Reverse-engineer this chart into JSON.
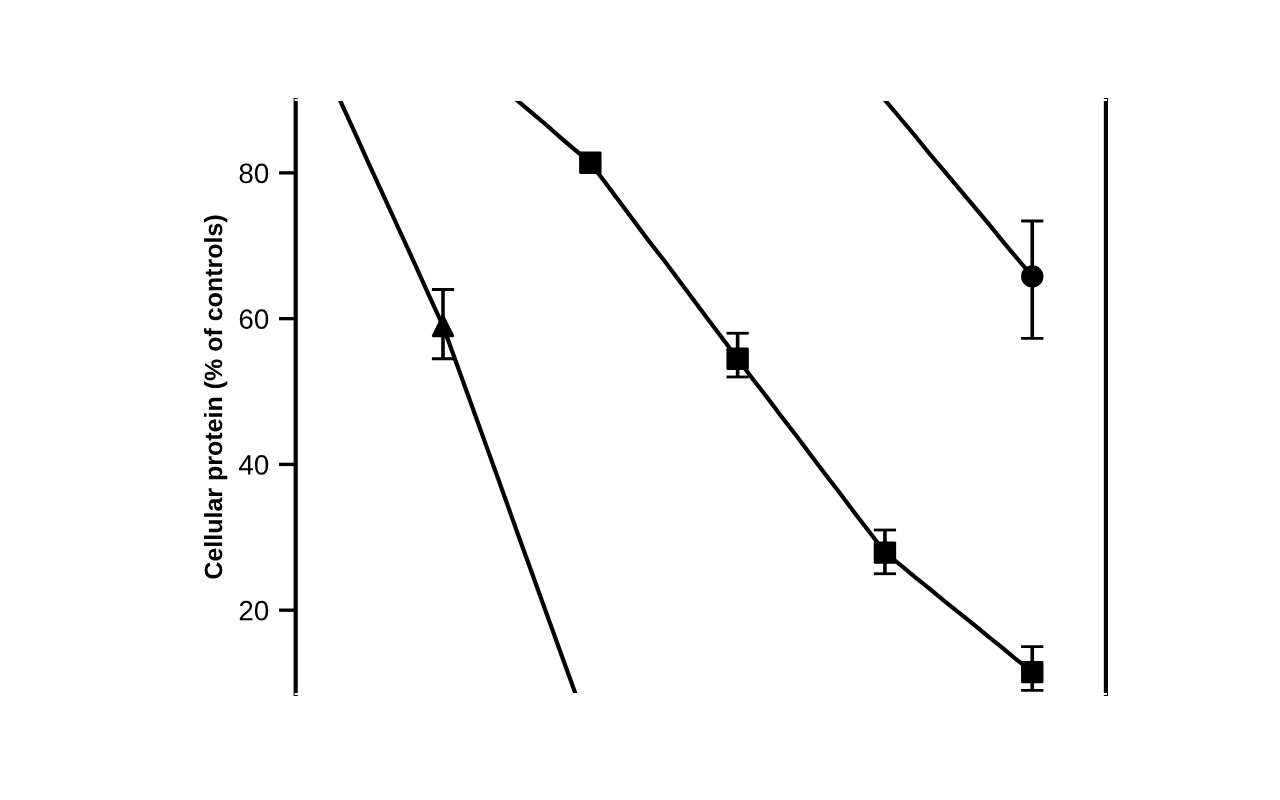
{
  "chart_data": {
    "type": "line",
    "ylabel": "Cellular protein (% of controls)",
    "categories": [
      null,
      null,
      null,
      null,
      null,
      null,
      null,
      null,
      null,
      null,
      null,
      null,
      null,
      null,
      null,
      null,
      null,
      null,
      null,
      null,
      null,
      null,
      null,
      null,
      null,
      null,
      null,
      null,
      null,
      null,
      null,
      null,
      null,
      null,
      null,
      null,
      null,
      null,
      null,
      null,
      null,
      null,
      null,
      null,
      null,
      null,
      null,
      null,
      null,
      null,
      null,
      null,
      null,
      null,
      null,
      null
    ],
    "ylim": [
      8.5,
      90
    ],
    "yticks": [
      20,
      40,
      60,
      80
    ],
    "tick_labels": "y",
    "series": [
      {
        "color": "#000000",
        "values": [
          null,
          null,
          null,
          90,
          85.6,
          81.1,
          76.7,
          72.3,
          67.9,
          63.4,
          59,
          53.4,
          47.8,
          42.2,
          36.6,
          30.9,
          25.3,
          19.7,
          14.1,
          8.5,
          null,
          null,
          null,
          null,
          null,
          null,
          null,
          null,
          null,
          null,
          null,
          null,
          null,
          null,
          null,
          null,
          null,
          null,
          null,
          null,
          null,
          null,
          null,
          null,
          null,
          null,
          null,
          null,
          null,
          null,
          null,
          null,
          null,
          null,
          null,
          null
        ]
      },
      {
        "type": "scatter",
        "marker": "triangle",
        "color": "#000000",
        "values": [
          null,
          null,
          null,
          null,
          null,
          null,
          null,
          null,
          null,
          null,
          59,
          null,
          null,
          null,
          null,
          null,
          null,
          null,
          null,
          null,
          null,
          null,
          null,
          null,
          null,
          null,
          null,
          null,
          null,
          null,
          null,
          null,
          null,
          null,
          null,
          null,
          null,
          null,
          null,
          null,
          null,
          null,
          null,
          null,
          null,
          null,
          null,
          null,
          null,
          null,
          null,
          null,
          null,
          null,
          null,
          null
        ],
        "errors": [
          null,
          null,
          null,
          null,
          null,
          null,
          null,
          null,
          null,
          null,
          [
            54.5,
            64
          ],
          null,
          null,
          null,
          null,
          null,
          null,
          null,
          null,
          null,
          null,
          null,
          null,
          null,
          null,
          null,
          null,
          null,
          null,
          null,
          null,
          null,
          null,
          null,
          null,
          null,
          null,
          null,
          null,
          null,
          null,
          null,
          null,
          null,
          null,
          null,
          null,
          null,
          null,
          null,
          null,
          null,
          null,
          null,
          null,
          null
        ]
      },
      {
        "color": "#000000",
        "values": [
          null,
          null,
          null,
          null,
          null,
          null,
          null,
          null,
          null,
          null,
          null,
          null,
          null,
          null,
          null,
          90,
          88.3,
          86.6,
          84.8,
          83.1,
          81.4,
          78.7,
          76.0,
          73.3,
          70.6,
          68.0,
          65.3,
          62.6,
          59.9,
          57.2,
          54.5,
          51.8,
          49.2,
          46.5,
          43.9,
          41.2,
          38.5,
          35.9,
          33.2,
          30.6,
          27.9,
          26.3,
          24.6,
          23.0,
          21.3,
          19.7,
          18.1,
          16.4,
          14.8,
          13.1,
          11.5,
          null,
          null,
          null,
          null,
          null
        ]
      },
      {
        "type": "scatter",
        "marker": "square",
        "color": "#000000",
        "values": [
          null,
          null,
          null,
          null,
          null,
          null,
          null,
          null,
          null,
          null,
          null,
          null,
          null,
          null,
          null,
          null,
          null,
          null,
          null,
          null,
          81.4,
          null,
          null,
          null,
          null,
          null,
          null,
          null,
          null,
          null,
          54.5,
          null,
          null,
          null,
          null,
          null,
          null,
          null,
          null,
          null,
          27.9,
          null,
          null,
          null,
          null,
          null,
          null,
          null,
          null,
          null,
          11.5,
          null,
          null,
          null,
          null,
          null
        ],
        "errors": [
          null,
          null,
          null,
          null,
          null,
          null,
          null,
          null,
          null,
          null,
          null,
          null,
          null,
          null,
          null,
          null,
          null,
          null,
          null,
          null,
          null,
          null,
          null,
          null,
          null,
          null,
          null,
          null,
          null,
          null,
          [
            52,
            58
          ],
          null,
          null,
          null,
          null,
          null,
          null,
          null,
          null,
          null,
          [
            25,
            31
          ],
          null,
          null,
          null,
          null,
          null,
          null,
          null,
          null,
          null,
          [
            9,
            15
          ],
          null,
          null,
          null,
          null,
          null
        ]
      },
      {
        "color": "#000000",
        "values": [
          null,
          null,
          null,
          null,
          null,
          null,
          null,
          null,
          null,
          null,
          null,
          null,
          null,
          null,
          null,
          null,
          null,
          null,
          null,
          null,
          null,
          null,
          null,
          null,
          null,
          null,
          null,
          null,
          null,
          null,
          null,
          null,
          null,
          null,
          null,
          null,
          null,
          null,
          null,
          null,
          90,
          87.6,
          85.2,
          82.7,
          80.3,
          77.9,
          75.5,
          73.1,
          70.6,
          68.2,
          65.8,
          null,
          null,
          null,
          null,
          null
        ]
      },
      {
        "type": "scatter",
        "marker": "circle",
        "color": "#000000",
        "values": [
          null,
          null,
          null,
          null,
          null,
          null,
          null,
          null,
          null,
          null,
          null,
          null,
          null,
          null,
          null,
          null,
          null,
          null,
          null,
          null,
          null,
          null,
          null,
          null,
          null,
          null,
          null,
          null,
          null,
          null,
          null,
          null,
          null,
          null,
          null,
          null,
          null,
          null,
          null,
          null,
          null,
          null,
          null,
          null,
          null,
          null,
          null,
          null,
          null,
          null,
          65.8,
          null,
          null,
          null,
          null,
          null
        ],
        "errors": [
          null,
          null,
          null,
          null,
          null,
          null,
          null,
          null,
          null,
          null,
          null,
          null,
          null,
          null,
          null,
          null,
          null,
          null,
          null,
          null,
          null,
          null,
          null,
          null,
          null,
          null,
          null,
          null,
          null,
          null,
          null,
          null,
          null,
          null,
          null,
          null,
          null,
          null,
          null,
          null,
          null,
          null,
          null,
          null,
          null,
          null,
          null,
          null,
          null,
          null,
          [
            57.3,
            73.4
          ],
          null,
          null,
          null,
          null,
          null
        ]
      }
    ]
  }
}
